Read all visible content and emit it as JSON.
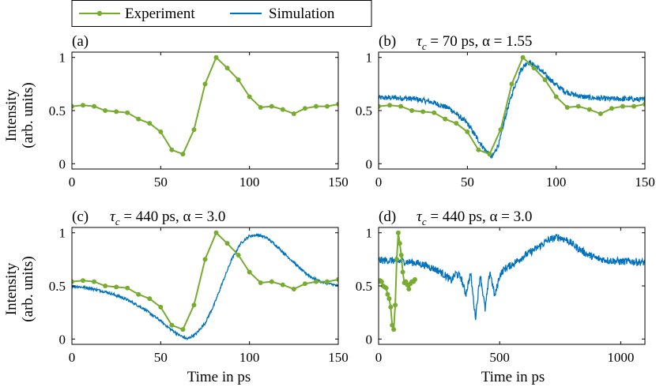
{
  "legend": {
    "entries": [
      {
        "label": "Experiment",
        "color": "#77ac30"
      },
      {
        "label": "Simulation",
        "color": "#0072bd"
      }
    ]
  },
  "colors": {
    "experiment": "#77ac30",
    "simulation": "#0072bd"
  },
  "panels": {
    "a": {
      "label": "(a)",
      "annotation": ""
    },
    "b": {
      "label": "(b)",
      "annotation_sym": "τ",
      "annotation_sub": "c",
      "annotation_rest": " = 70 ps, α = 1.55"
    },
    "c": {
      "label": "(c)",
      "annotation_sym": "τ",
      "annotation_sub": "c",
      "annotation_rest": " = 440 ps, α = 3.0"
    },
    "d": {
      "label": "(d)",
      "annotation_sym": "τ",
      "annotation_sub": "c",
      "annotation_rest": " = 440 ps, α = 3.0"
    }
  },
  "axes": {
    "ylabel_line1": "Intensity",
    "ylabel_line2": "(arb. units)",
    "xlabel": "Time in ps"
  },
  "chart_data": [
    {
      "type": "line",
      "panel": "(a)",
      "xlim": [
        0,
        150
      ],
      "ylim": [
        -0.05,
        1.05
      ],
      "xticks": [
        0,
        50,
        100,
        150
      ],
      "yticks": [
        0,
        0.5,
        1
      ],
      "series": [
        {
          "name": "Experiment",
          "x": [
            0,
            6.25,
            12.5,
            18.75,
            25,
            31.25,
            37.5,
            43.75,
            50,
            56.25,
            62.5,
            68.75,
            75,
            81.25,
            87.5,
            93.75,
            100,
            106.25,
            112.5,
            118.75,
            125,
            131.25,
            137.5,
            143.75,
            150
          ],
          "y": [
            0.54,
            0.55,
            0.54,
            0.5,
            0.49,
            0.48,
            0.42,
            0.38,
            0.3,
            0.13,
            0.09,
            0.32,
            0.75,
            1.0,
            0.9,
            0.79,
            0.63,
            0.53,
            0.54,
            0.51,
            0.47,
            0.52,
            0.54,
            0.54,
            0.56
          ]
        }
      ]
    },
    {
      "type": "line",
      "panel": "(b)",
      "xlim": [
        0,
        150
      ],
      "ylim": [
        -0.05,
        1.05
      ],
      "xticks": [
        0,
        50,
        100,
        150
      ],
      "yticks": [
        0,
        0.5,
        1
      ],
      "series": [
        {
          "name": "Experiment",
          "x": [
            0,
            6.25,
            12.5,
            18.75,
            25,
            31.25,
            37.5,
            43.75,
            50,
            56.25,
            62.5,
            68.75,
            75,
            81.25,
            87.5,
            93.75,
            100,
            106.25,
            112.5,
            118.75,
            125,
            131.25,
            137.5,
            143.75,
            150
          ],
          "y": [
            0.54,
            0.55,
            0.54,
            0.5,
            0.49,
            0.48,
            0.42,
            0.38,
            0.3,
            0.13,
            0.09,
            0.32,
            0.75,
            1.0,
            0.9,
            0.79,
            0.63,
            0.53,
            0.54,
            0.51,
            0.47,
            0.52,
            0.54,
            0.54,
            0.56
          ]
        },
        {
          "name": "Simulation",
          "x": [
            0,
            10,
            20,
            30,
            40,
            50,
            55,
            60,
            64,
            68,
            72,
            76,
            80,
            84,
            90,
            95,
            100,
            105,
            110,
            115,
            120,
            130,
            140,
            150
          ],
          "y": [
            0.62,
            0.62,
            0.61,
            0.58,
            0.52,
            0.38,
            0.25,
            0.13,
            0.06,
            0.2,
            0.48,
            0.7,
            0.88,
            0.96,
            0.9,
            0.82,
            0.74,
            0.68,
            0.65,
            0.63,
            0.62,
            0.61,
            0.61,
            0.6
          ],
          "noise": 0.025
        }
      ]
    },
    {
      "type": "line",
      "panel": "(c)",
      "xlim": [
        0,
        150
      ],
      "ylim": [
        -0.05,
        1.05
      ],
      "xticks": [
        0,
        50,
        100,
        150
      ],
      "yticks": [
        0,
        0.5,
        1
      ],
      "series": [
        {
          "name": "Experiment",
          "x": [
            0,
            6.25,
            12.5,
            18.75,
            25,
            31.25,
            37.5,
            43.75,
            50,
            56.25,
            62.5,
            68.75,
            75,
            81.25,
            87.5,
            93.75,
            100,
            106.25,
            112.5,
            118.75,
            125,
            131.25,
            137.5,
            143.75,
            150
          ],
          "y": [
            0.54,
            0.55,
            0.54,
            0.5,
            0.49,
            0.48,
            0.42,
            0.38,
            0.3,
            0.13,
            0.09,
            0.32,
            0.75,
            1.0,
            0.9,
            0.79,
            0.63,
            0.53,
            0.54,
            0.51,
            0.47,
            0.52,
            0.54,
            0.54,
            0.56
          ]
        },
        {
          "name": "Simulation",
          "x": [
            0,
            10,
            20,
            30,
            40,
            50,
            55,
            60,
            65,
            70,
            75,
            80,
            85,
            90,
            95,
            100,
            105,
            110,
            115,
            120,
            125,
            130,
            135,
            140,
            145,
            150
          ],
          "y": [
            0.5,
            0.48,
            0.44,
            0.38,
            0.29,
            0.17,
            0.1,
            0.04,
            0.0,
            0.05,
            0.15,
            0.32,
            0.54,
            0.75,
            0.9,
            0.97,
            0.98,
            0.95,
            0.88,
            0.8,
            0.72,
            0.64,
            0.58,
            0.54,
            0.52,
            0.5
          ],
          "noise": 0.012
        }
      ]
    },
    {
      "type": "line",
      "panel": "(d)",
      "xlim": [
        0,
        1100
      ],
      "ylim": [
        -0.05,
        1.05
      ],
      "xticks": [
        0,
        500,
        1000
      ],
      "yticks": [
        0,
        0.5,
        1
      ],
      "series": [
        {
          "name": "Experiment",
          "x": [
            0,
            6.25,
            12.5,
            18.75,
            25,
            31.25,
            37.5,
            43.75,
            50,
            56.25,
            62.5,
            68.75,
            75,
            81.25,
            87.5,
            93.75,
            100,
            106.25,
            112.5,
            118.75,
            125,
            131.25,
            137.5,
            143.75,
            150
          ],
          "y": [
            0.54,
            0.55,
            0.54,
            0.5,
            0.49,
            0.48,
            0.42,
            0.38,
            0.3,
            0.13,
            0.09,
            0.32,
            0.75,
            1.0,
            0.9,
            0.79,
            0.63,
            0.53,
            0.54,
            0.51,
            0.47,
            0.52,
            0.54,
            0.54,
            0.56
          ]
        },
        {
          "name": "Simulation",
          "x": [
            0,
            50,
            100,
            150,
            200,
            250,
            280,
            300,
            320,
            340,
            360,
            380,
            400,
            420,
            440,
            460,
            480,
            500,
            520,
            550,
            600,
            650,
            700,
            740,
            780,
            820,
            860,
            900,
            950,
            1000,
            1050,
            1100
          ],
          "y": [
            0.74,
            0.74,
            0.73,
            0.72,
            0.69,
            0.64,
            0.59,
            0.55,
            0.62,
            0.58,
            0.42,
            0.62,
            0.2,
            0.61,
            0.28,
            0.64,
            0.4,
            0.6,
            0.66,
            0.7,
            0.78,
            0.85,
            0.93,
            0.96,
            0.93,
            0.86,
            0.8,
            0.76,
            0.74,
            0.73,
            0.73,
            0.72
          ],
          "noise": 0.035
        }
      ]
    }
  ]
}
